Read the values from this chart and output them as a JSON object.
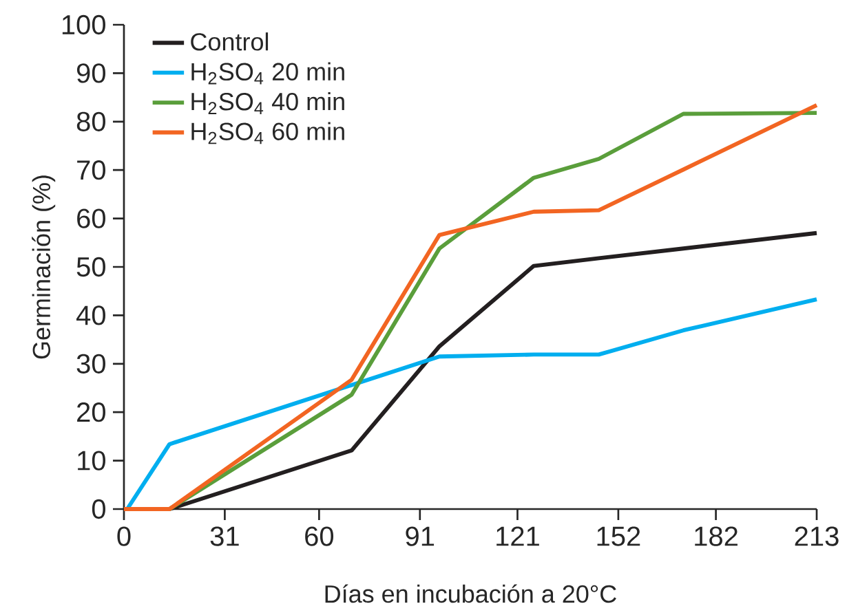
{
  "chart_data": {
    "type": "line",
    "xlabel": "Días en incubación a 20°C",
    "ylabel": "Germinación (%)",
    "xlim": [
      0,
      213
    ],
    "xticks": [
      0,
      31,
      60,
      91,
      121,
      152,
      182,
      213
    ],
    "ylim": [
      0,
      100
    ],
    "yticks": [
      0,
      10,
      20,
      30,
      40,
      50,
      60,
      70,
      80,
      90,
      100
    ],
    "legend": "top left",
    "line_style": "solid",
    "series": [
      {
        "name": "Control",
        "color": "#231f20",
        "x": [
          0,
          14,
          70,
          97,
          126,
          146,
          172,
          213
        ],
        "values": [
          0,
          0,
          12.1,
          33.6,
          50.2,
          51.8,
          53.8,
          57.0
        ]
      },
      {
        "name": "H$_{2}$SO$_{4}$ 20 min",
        "color": "#00aeef",
        "x": [
          1,
          14,
          97,
          126,
          146,
          172,
          213
        ],
        "values": [
          0,
          13.4,
          31.5,
          31.9,
          31.9,
          36.9,
          43.3
        ]
      },
      {
        "name": "H$_{2}$SO$_{4}$ 40 min",
        "color": "#5a9e3b",
        "x": [
          0,
          14,
          70,
          97,
          126,
          146,
          172,
          213
        ],
        "values": [
          0,
          0,
          23.6,
          53.8,
          68.4,
          72.3,
          81.6,
          81.8
        ]
      },
      {
        "name": "H$_{2}$SO$_{4}$ 60 min",
        "color": "#f26522",
        "x": [
          0,
          14,
          70,
          97,
          126,
          146,
          172,
          213
        ],
        "values": [
          0,
          0,
          26.7,
          56.6,
          61.4,
          61.7,
          70.1,
          83.4
        ]
      }
    ]
  }
}
